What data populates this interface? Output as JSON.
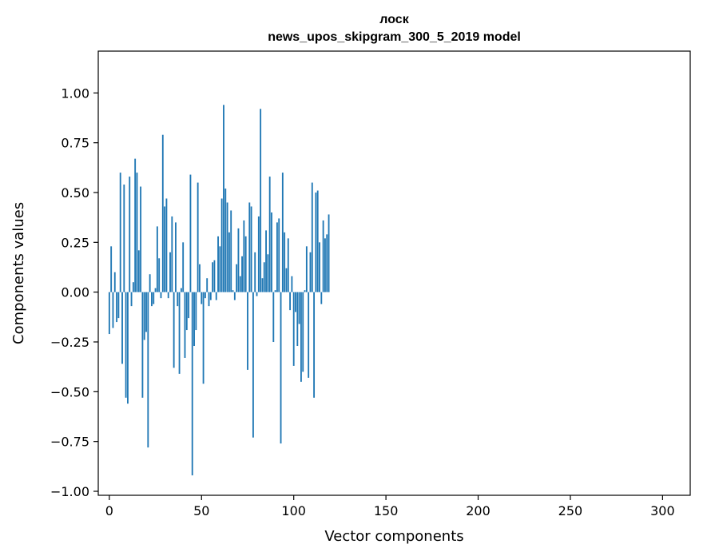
{
  "chart_data": {
    "type": "bar",
    "title": "лоск",
    "subtitle": "news_upos_skipgram_300_5_2019 model",
    "xlabel": "Vector components",
    "ylabel": "Components values",
    "xlim": [
      -6,
      315
    ],
    "ylim": [
      -1.02,
      1.21
    ],
    "xticks": [
      0,
      50,
      100,
      150,
      200,
      250,
      300
    ],
    "yticks": [
      -1.0,
      -0.75,
      -0.5,
      -0.25,
      0.0,
      0.25,
      0.5,
      0.75,
      1.0
    ],
    "ytick_labels": [
      "−1.00",
      "−0.75",
      "−0.50",
      "−0.25",
      "0.00",
      "0.25",
      "0.50",
      "0.75",
      "1.00"
    ],
    "xtick_labels": [
      "0",
      "50",
      "100",
      "150",
      "200",
      "250",
      "300"
    ],
    "bar_color": "#1f77b4",
    "values": [
      -0.21,
      0.23,
      -0.18,
      0.1,
      -0.15,
      -0.13,
      0.6,
      -0.36,
      0.54,
      -0.53,
      -0.56,
      0.58,
      -0.07,
      0.05,
      0.67,
      0.6,
      0.21,
      0.53,
      -0.53,
      -0.24,
      -0.2,
      -0.78,
      0.09,
      -0.07,
      -0.06,
      0.02,
      0.33,
      0.17,
      -0.03,
      0.79,
      0.43,
      0.47,
      -0.03,
      0.2,
      0.38,
      -0.38,
      0.35,
      -0.07,
      -0.41,
      0.02,
      0.25,
      -0.33,
      -0.19,
      -0.13,
      0.59,
      -0.92,
      -0.27,
      -0.19,
      0.55,
      0.14,
      -0.06,
      -0.46,
      -0.03,
      0.07,
      -0.07,
      -0.04,
      0.15,
      0.16,
      -0.04,
      0.28,
      0.23,
      0.47,
      0.94,
      0.52,
      0.45,
      0.3,
      0.41,
      0.01,
      -0.04,
      0.14,
      0.32,
      0.08,
      0.18,
      0.36,
      0.28,
      -0.39,
      0.45,
      0.43,
      -0.73,
      0.2,
      -0.02,
      0.38,
      0.92,
      0.07,
      0.15,
      0.31,
      0.19,
      0.58,
      0.4,
      -0.25,
      0.01,
      0.35,
      0.37,
      -0.76,
      0.6,
      0.3,
      0.12,
      0.27,
      -0.09,
      0.08,
      -0.37,
      -0.1,
      -0.27,
      -0.16,
      -0.45,
      -0.4,
      0.01,
      0.23,
      -0.43,
      0.2,
      0.55,
      -0.53,
      0.5,
      0.51,
      0.25,
      -0.06,
      0.36,
      0.27,
      0.29,
      0.39
    ]
  }
}
